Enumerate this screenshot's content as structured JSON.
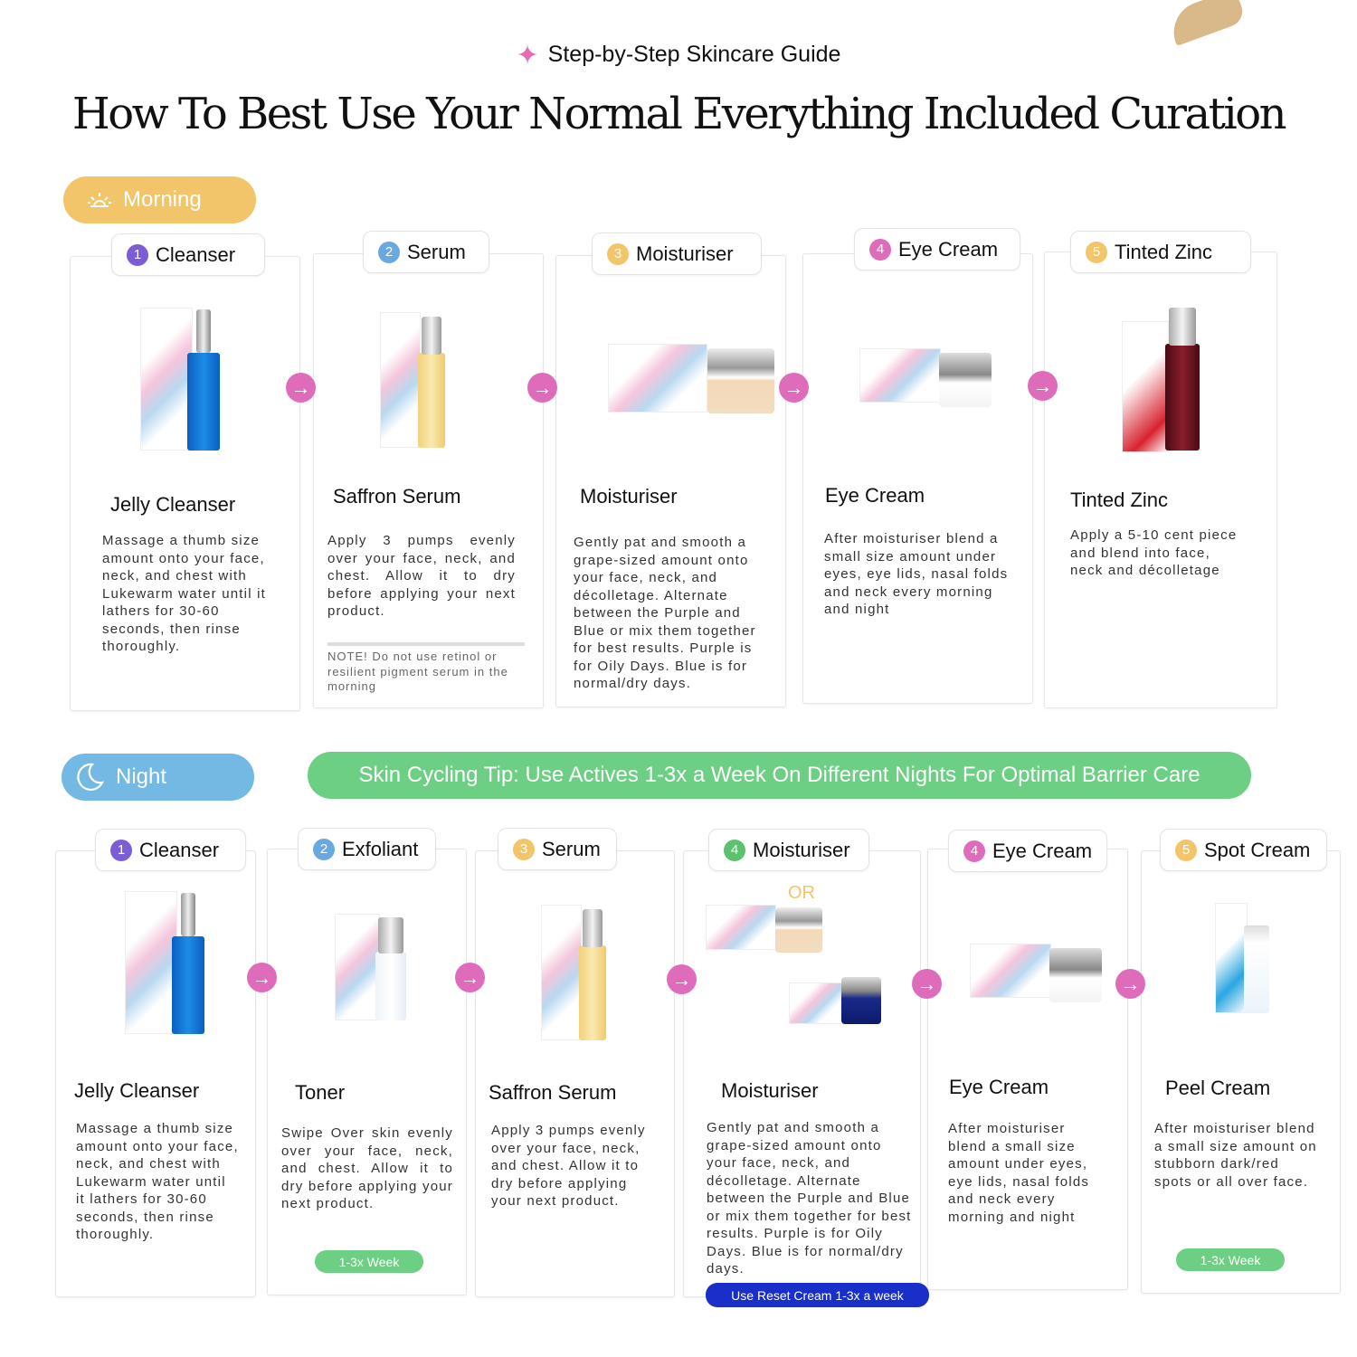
{
  "header": {
    "kicker": "Step-by-Step Skincare Guide",
    "title": "How To Best Use Your Normal Everything Included Curation"
  },
  "colors": {
    "morning": "#f2c56b",
    "night": "#74b8e4",
    "tip": "#6ccf84",
    "arrow": "#df6cbb",
    "reset": "#1a2fc9",
    "badge_purple": "#7b5ed6",
    "badge_blue": "#6aa9e0",
    "badge_yellow": "#f2c56b",
    "badge_pink": "#df6cbb",
    "badge_green": "#5cc26f"
  },
  "morning": {
    "label": "Morning",
    "icon": "sunrise-icon",
    "steps": [
      {
        "num": "1",
        "tab": "Cleanser",
        "title": "Jelly Cleanser",
        "desc": "Massage a thumb size amount onto your face, neck, and chest with Lukewarm water until it lathers for 30-60 seconds, then rinse thoroughly."
      },
      {
        "num": "2",
        "tab": "Serum",
        "title": "Saffron Serum",
        "desc": "Apply 3 pumps evenly over your face, neck, and chest. Allow it to dry before applying your next product.",
        "note": "NOTE! Do not  use retinol or resilient pigment serum in the morning"
      },
      {
        "num": "3",
        "tab": "Moisturiser",
        "title": "Moisturiser",
        "desc": "Gently pat and smooth a grape-sized amount onto your face, neck, and décolletage. Alternate between the Purple and Blue or mix them together for best results. Purple is for Oily Days. Blue is for normal/dry days."
      },
      {
        "num": "4",
        "tab": "Eye Cream",
        "title": "Eye Cream",
        "desc": "After moisturiser blend a small size amount under eyes, eye lids, nasal folds and neck every morning and night"
      },
      {
        "num": "5",
        "tab": "Tinted Zinc",
        "title": "Tinted Zinc",
        "desc": "Apply a 5-10 cent piece and blend into face, neck and décolletage"
      }
    ]
  },
  "night": {
    "label": "Night",
    "icon": "moon-icon",
    "tip": "Skin Cycling Tip: Use Actives  1-3x a Week On Different Nights For Optimal Barrier Care",
    "steps": [
      {
        "num": "1",
        "tab": "Cleanser",
        "title": "Jelly  Cleanser",
        "desc": "Massage a thumb size amount onto your face, neck, and chest with Lukewarm water until it lathers for 30-60 seconds, then rinse thoroughly."
      },
      {
        "num": "2",
        "tab": "Exfoliant",
        "title": "Toner",
        "desc": "Swipe Over skin evenly over your face, neck, and chest. Allow it to dry before applying your next product.",
        "badge": "1-3x Week"
      },
      {
        "num": "3",
        "tab": "Serum",
        "title": "Saffron Serum",
        "desc": "Apply 3 pumps evenly over your face, neck, and chest. Allow it to dry before applying your next product."
      },
      {
        "num": "4",
        "tab": "Moisturiser",
        "title": "Moisturiser",
        "or": "OR",
        "desc": "Gently pat and smooth a grape-sized amount onto your face, neck, and décolletage. Alternate between the Purple and Blue or mix them together for best results. Purple is for Oily Days. Blue is for normal/dry days.",
        "button": "Use Reset Cream 1-3x a week"
      },
      {
        "num": "4",
        "tab": "Eye Cream",
        "title": "Eye Cream",
        "desc": "After moisturiser blend a small size amount under eyes, eye lids, nasal folds and neck every morning and night"
      },
      {
        "num": "5",
        "tab": "Spot Cream",
        "title": "Peel Cream",
        "desc": "After moisturiser blend a small size amount on stubborn dark/red spots or all over face.",
        "badge": "1-3x Week"
      }
    ]
  }
}
